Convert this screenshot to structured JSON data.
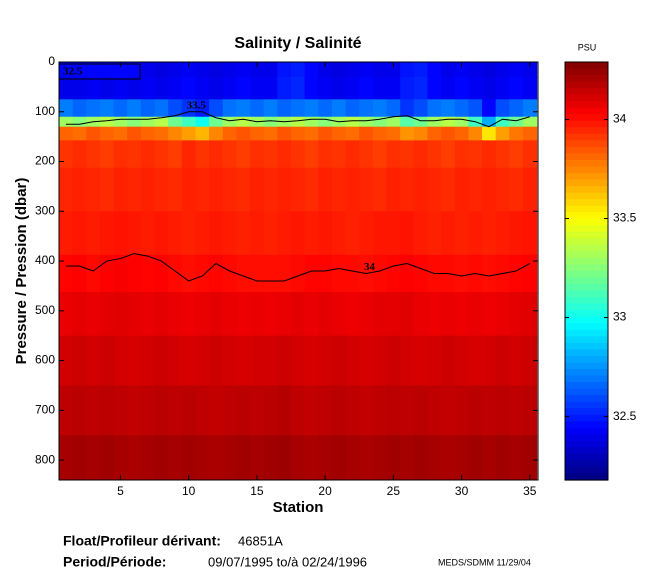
{
  "chart_data": {
    "type": "heatmap",
    "title": "Salinity / Salinité",
    "xlabel": "Station",
    "ylabel": "Pressure / Pression (dbar)",
    "colorbar_label": "PSU",
    "xlim": [
      0.5,
      35.6
    ],
    "ylim": [
      0,
      840
    ],
    "xticks": [
      5,
      10,
      15,
      20,
      25,
      30,
      35
    ],
    "yticks": [
      0,
      100,
      200,
      300,
      400,
      500,
      600,
      700,
      800
    ],
    "clim": [
      32.18,
      34.29
    ],
    "cticks": [
      32.5,
      33,
      33.5,
      34
    ],
    "colormap": "jet",
    "x": [
      1,
      2,
      3,
      4,
      5,
      6,
      7,
      8,
      9,
      10,
      11,
      12,
      13,
      14,
      15,
      16,
      17,
      18,
      19,
      20,
      21,
      22,
      23,
      24,
      25,
      26,
      27,
      28,
      29,
      30,
      31,
      32,
      33,
      34,
      35
    ],
    "y": [
      10,
      50,
      100,
      120,
      140,
      175,
      250,
      350,
      425,
      500,
      600,
      700,
      800
    ],
    "z": [
      [
        32.45,
        32.45,
        32.45,
        32.45,
        32.45,
        32.45,
        32.4,
        32.38,
        32.4,
        32.42,
        32.4,
        32.38,
        32.4,
        32.42,
        32.4,
        32.4,
        32.48,
        32.5,
        32.45,
        32.4,
        32.38,
        32.4,
        32.42,
        32.4,
        32.4,
        32.48,
        32.5,
        32.45,
        32.4,
        32.42,
        32.4,
        32.38,
        32.4,
        32.42,
        32.4
      ],
      [
        32.4,
        32.4,
        32.42,
        32.4,
        32.42,
        32.4,
        32.42,
        32.4,
        32.42,
        32.45,
        32.42,
        32.4,
        32.42,
        32.45,
        32.42,
        32.42,
        32.5,
        32.52,
        32.45,
        32.42,
        32.4,
        32.42,
        32.45,
        32.42,
        32.42,
        32.5,
        32.52,
        32.45,
        32.42,
        32.45,
        32.42,
        32.4,
        32.42,
        32.45,
        32.42
      ],
      [
        32.7,
        32.65,
        32.68,
        32.7,
        32.66,
        32.7,
        32.65,
        32.68,
        32.6,
        32.55,
        32.5,
        32.6,
        32.68,
        32.7,
        32.66,
        32.7,
        32.65,
        32.68,
        32.7,
        32.66,
        32.7,
        32.65,
        32.68,
        32.7,
        32.66,
        32.55,
        32.6,
        32.68,
        32.7,
        32.66,
        32.62,
        32.45,
        32.6,
        32.65,
        32.7
      ],
      [
        33.3,
        33.25,
        33.3,
        33.35,
        33.3,
        33.25,
        33.3,
        33.35,
        33.2,
        33.1,
        33.0,
        33.2,
        33.3,
        33.35,
        33.3,
        33.25,
        33.3,
        33.35,
        33.3,
        33.25,
        33.3,
        33.35,
        33.3,
        33.25,
        33.3,
        33.15,
        33.2,
        33.3,
        33.35,
        33.3,
        33.1,
        32.8,
        33.1,
        33.2,
        33.3
      ],
      [
        33.82,
        33.8,
        33.85,
        33.82,
        33.8,
        33.85,
        33.82,
        33.8,
        33.75,
        33.7,
        33.65,
        33.75,
        33.82,
        33.85,
        33.82,
        33.8,
        33.85,
        33.82,
        33.8,
        33.85,
        33.82,
        33.8,
        33.85,
        33.82,
        33.8,
        33.72,
        33.75,
        33.82,
        33.85,
        33.82,
        33.75,
        33.55,
        33.7,
        33.78,
        33.82
      ],
      [
        33.92,
        33.94,
        33.92,
        33.9,
        33.93,
        33.92,
        33.94,
        33.92,
        33.9,
        33.95,
        33.92,
        33.94,
        33.92,
        33.9,
        33.93,
        33.92,
        33.94,
        33.92,
        33.9,
        33.93,
        33.92,
        33.94,
        33.92,
        33.9,
        33.93,
        33.92,
        33.94,
        33.92,
        33.9,
        33.93,
        33.92,
        33.94,
        33.92,
        33.9,
        33.93
      ],
      [
        33.95,
        33.96,
        33.95,
        33.94,
        33.96,
        33.95,
        33.96,
        33.95,
        33.94,
        33.96,
        33.95,
        33.96,
        33.95,
        33.94,
        33.96,
        33.95,
        33.96,
        33.95,
        33.94,
        33.96,
        33.95,
        33.96,
        33.95,
        33.94,
        33.96,
        33.95,
        33.96,
        33.95,
        33.94,
        33.96,
        33.95,
        33.96,
        33.95,
        33.94,
        33.96
      ],
      [
        33.97,
        33.98,
        33.97,
        33.98,
        33.99,
        33.98,
        33.97,
        33.98,
        33.97,
        33.96,
        33.97,
        33.98,
        33.97,
        33.96,
        33.97,
        33.96,
        33.97,
        33.98,
        33.97,
        33.98,
        33.97,
        33.96,
        33.97,
        33.98,
        33.98,
        33.99,
        33.97,
        33.96,
        33.97,
        33.96,
        33.97,
        33.96,
        33.97,
        33.98,
        33.99
      ],
      [
        34.02,
        34.03,
        34.01,
        34.03,
        34.04,
        34.03,
        34.02,
        34.03,
        34.01,
        34.0,
        34.01,
        34.02,
        34.01,
        34.0,
        34.0,
        34.0,
        34.0,
        34.01,
        34.02,
        34.02,
        34.01,
        34.01,
        34.0,
        34.01,
        34.02,
        34.03,
        34.02,
        34.01,
        34.01,
        34.0,
        34.01,
        34.0,
        34.01,
        34.02,
        34.03
      ],
      [
        34.07,
        34.08,
        34.07,
        34.08,
        34.09,
        34.08,
        34.07,
        34.08,
        34.07,
        34.06,
        34.07,
        34.08,
        34.07,
        34.06,
        34.07,
        34.06,
        34.07,
        34.08,
        34.07,
        34.08,
        34.07,
        34.06,
        34.07,
        34.08,
        34.08,
        34.09,
        34.07,
        34.06,
        34.07,
        34.06,
        34.07,
        34.06,
        34.07,
        34.08,
        34.09
      ],
      [
        34.12,
        34.13,
        34.12,
        34.13,
        34.12,
        34.11,
        34.12,
        34.13,
        34.12,
        34.11,
        34.12,
        34.13,
        34.12,
        34.11,
        34.12,
        34.12,
        34.13,
        34.12,
        34.11,
        34.12,
        34.13,
        34.12,
        34.11,
        34.12,
        34.13,
        34.12,
        34.11,
        34.12,
        34.13,
        34.12,
        34.11,
        34.12,
        34.13,
        34.12,
        34.13
      ],
      [
        34.16,
        34.17,
        34.16,
        34.17,
        34.16,
        34.15,
        34.16,
        34.17,
        34.16,
        34.17,
        34.16,
        34.15,
        34.16,
        34.17,
        34.16,
        34.17,
        34.18,
        34.16,
        34.15,
        34.16,
        34.17,
        34.16,
        34.15,
        34.16,
        34.17,
        34.16,
        34.17,
        34.16,
        34.15,
        34.16,
        34.17,
        34.16,
        34.17,
        34.16,
        34.17
      ],
      [
        34.21,
        34.22,
        34.21,
        34.22,
        34.21,
        34.2,
        34.21,
        34.22,
        34.21,
        34.22,
        34.21,
        34.2,
        34.21,
        34.22,
        34.21,
        34.22,
        34.23,
        34.21,
        34.2,
        34.21,
        34.22,
        34.21,
        34.2,
        34.21,
        34.22,
        34.21,
        34.22,
        34.21,
        34.2,
        34.21,
        34.22,
        34.21,
        34.22,
        34.21,
        34.22
      ]
    ],
    "contours": [
      {
        "label": "33.5",
        "depth": [
          125,
          125,
          120,
          118,
          115,
          115,
          115,
          112,
          108,
          100,
          100,
          112,
          118,
          115,
          120,
          118,
          120,
          118,
          115,
          115,
          120,
          118,
          118,
          115,
          110,
          108,
          118,
          118,
          115,
          115,
          120,
          130,
          115,
          118,
          110
        ]
      },
      {
        "label": "34",
        "depth": [
          410,
          410,
          420,
          400,
          395,
          385,
          390,
          400,
          420,
          440,
          430,
          405,
          420,
          430,
          440,
          440,
          440,
          430,
          420,
          420,
          415,
          420,
          425,
          420,
          410,
          405,
          415,
          425,
          425,
          430,
          425,
          430,
          425,
          420,
          405
        ]
      }
    ],
    "annotation": "32.5"
  },
  "footer": {
    "float_label": "Float/Profileur dérivant:",
    "float_id": "46851A",
    "period_label": "Period/Période:",
    "period": "09/07/1995 to/à 02/24/1996",
    "source": "MEDS/SDMM 11/29/04"
  }
}
